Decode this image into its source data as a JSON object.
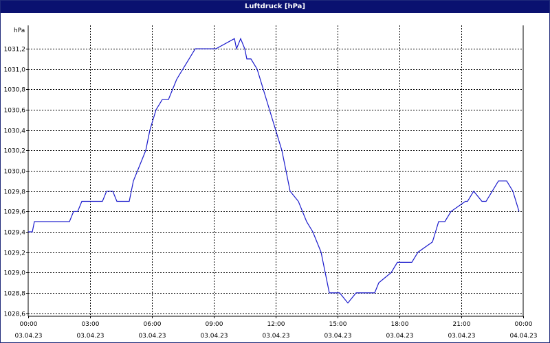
{
  "title": "Luftdruck [hPa]",
  "colors": {
    "titlebar": "#0a1170",
    "line": "#1a1acc",
    "grid": "#000000"
  },
  "chart_data": {
    "type": "line",
    "title": "Luftdruck [hPa]",
    "ylabel": "hPa",
    "xlabel": "",
    "ylim": [
      1028.57,
      1031.43
    ],
    "xlim": [
      "03.04.23 00:00",
      "04.04.23 00:00"
    ],
    "grid": true,
    "y_ticks": [
      "1028,6",
      "1028,8",
      "1029,0",
      "1029,2",
      "1029,4",
      "1029,6",
      "1029,8",
      "1030,0",
      "1030,2",
      "1030,4",
      "1030,6",
      "1030,8",
      "1031,0",
      "1031,2"
    ],
    "y_tick_values": [
      1028.6,
      1028.8,
      1029.0,
      1029.2,
      1029.4,
      1029.6,
      1029.8,
      1030.0,
      1030.2,
      1030.4,
      1030.6,
      1030.8,
      1031.0,
      1031.2
    ],
    "x_ticks": [
      {
        "time": "00:00",
        "date": "03.04.23"
      },
      {
        "time": "03:00",
        "date": "03.04.23"
      },
      {
        "time": "06:00",
        "date": "03.04.23"
      },
      {
        "time": "09:00",
        "date": "03.04.23"
      },
      {
        "time": "12:00",
        "date": "03.04.23"
      },
      {
        "time": "15:00",
        "date": "03.04.23"
      },
      {
        "time": "18:00",
        "date": "03.04.23"
      },
      {
        "time": "21:00",
        "date": "03.04.23"
      },
      {
        "time": "00:00",
        "date": "04.04.23"
      }
    ],
    "x_hours": [
      0,
      3,
      6,
      9,
      12,
      15,
      18,
      21,
      24
    ],
    "series": [
      {
        "x": [
          0.0,
          0.2,
          0.3,
          2.0,
          2.2,
          2.4,
          2.6,
          3.2,
          3.6,
          3.8,
          4.1,
          4.3,
          4.9,
          5.1,
          5.3,
          5.7,
          5.9,
          6.2,
          6.5,
          6.8,
          7.0,
          7.2,
          7.5,
          7.8,
          8.1,
          8.5,
          8.8,
          9.1,
          10.0,
          10.1,
          10.3,
          10.5,
          10.6,
          10.8,
          11.1,
          11.7,
          12.0,
          12.3,
          12.5,
          12.7,
          13.1,
          13.5,
          13.8,
          14.2,
          14.4,
          14.6,
          15.1,
          15.5,
          15.9,
          16.3,
          16.5,
          16.8,
          17.0,
          17.6,
          17.9,
          18.2,
          18.6,
          18.9,
          19.6,
          19.9,
          20.2,
          20.5,
          21.2,
          21.3,
          21.6,
          22.0,
          22.2,
          22.5,
          22.8,
          23.2,
          23.5,
          23.8
        ],
        "y": [
          1029.4,
          1029.4,
          1029.5,
          1029.5,
          1029.6,
          1029.6,
          1029.7,
          1029.7,
          1029.7,
          1029.8,
          1029.8,
          1029.7,
          1029.7,
          1029.9,
          1030.0,
          1030.2,
          1030.4,
          1030.6,
          1030.7,
          1030.7,
          1030.8,
          1030.9,
          1031.0,
          1031.1,
          1031.2,
          1031.2,
          1031.2,
          1031.2,
          1031.3,
          1031.2,
          1031.3,
          1031.2,
          1031.1,
          1031.1,
          1031.0,
          1030.6,
          1030.4,
          1030.2,
          1030.0,
          1029.8,
          1029.7,
          1029.5,
          1029.4,
          1029.2,
          1029.0,
          1028.8,
          1028.8,
          1028.7,
          1028.8,
          1028.8,
          1028.8,
          1028.8,
          1028.9,
          1029.0,
          1029.1,
          1029.1,
          1029.1,
          1029.2,
          1029.3,
          1029.5,
          1029.5,
          1029.6,
          1029.7,
          1029.7,
          1029.8,
          1029.7,
          1029.7,
          1029.8,
          1029.9,
          1029.9,
          1029.8,
          1029.6
        ]
      }
    ]
  }
}
